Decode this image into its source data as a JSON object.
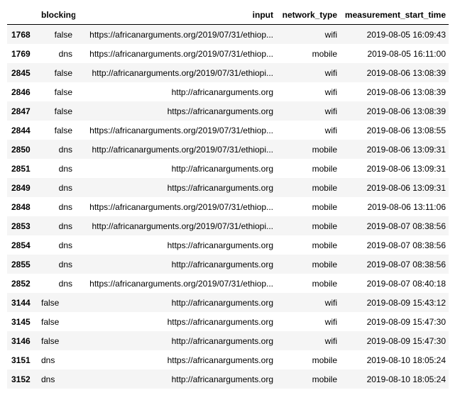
{
  "table": {
    "columns": [
      "",
      "blocking",
      "input",
      "network_type",
      "measurement_start_time"
    ],
    "rows": [
      [
        "1768",
        "false",
        "https://africanarguments.org/2019/07/31/ethiop...",
        "wifi",
        "2019-08-05 16:09:43"
      ],
      [
        "1769",
        "dns",
        "https://africanarguments.org/2019/07/31/ethiop...",
        "mobile",
        "2019-08-05 16:11:00"
      ],
      [
        "2845",
        "false",
        "http://africanarguments.org/2019/07/31/ethiopi...",
        "wifi",
        "2019-08-06 13:08:39"
      ],
      [
        "2846",
        "false",
        "http://africanarguments.org",
        "wifi",
        "2019-08-06 13:08:39"
      ],
      [
        "2847",
        "false",
        "https://africanarguments.org",
        "wifi",
        "2019-08-06 13:08:39"
      ],
      [
        "2844",
        "false",
        "https://africanarguments.org/2019/07/31/ethiop...",
        "wifi",
        "2019-08-06 13:08:55"
      ],
      [
        "2850",
        "dns",
        "http://africanarguments.org/2019/07/31/ethiopi...",
        "mobile",
        "2019-08-06 13:09:31"
      ],
      [
        "2851",
        "dns",
        "http://africanarguments.org",
        "mobile",
        "2019-08-06 13:09:31"
      ],
      [
        "2849",
        "dns",
        "https://africanarguments.org",
        "mobile",
        "2019-08-06 13:09:31"
      ],
      [
        "2848",
        "dns",
        "https://africanarguments.org/2019/07/31/ethiop...",
        "mobile",
        "2019-08-06 13:11:06"
      ],
      [
        "2853",
        "dns",
        "http://africanarguments.org/2019/07/31/ethiopi...",
        "mobile",
        "2019-08-07 08:38:56"
      ],
      [
        "2854",
        "dns",
        "https://africanarguments.org",
        "mobile",
        "2019-08-07 08:38:56"
      ],
      [
        "2855",
        "dns",
        "http://africanarguments.org",
        "mobile",
        "2019-08-07 08:38:56"
      ],
      [
        "2852",
        "dns",
        "https://africanarguments.org/2019/07/31/ethiop...",
        "mobile",
        "2019-08-07 08:40:18"
      ],
      [
        "3144",
        "false",
        "http://africanarguments.org",
        "wifi",
        "2019-08-09 15:43:12"
      ],
      [
        "3145",
        "false",
        "https://africanarguments.org",
        "wifi",
        "2019-08-09 15:47:30"
      ],
      [
        "3146",
        "false",
        "http://africanarguments.org",
        "wifi",
        "2019-08-09 15:47:30"
      ],
      [
        "3151",
        "dns",
        "https://africanarguments.org",
        "mobile",
        "2019-08-10 18:05:24"
      ],
      [
        "3152",
        "dns",
        "http://africanarguments.org",
        "mobile",
        "2019-08-10 18:05:24"
      ]
    ]
  }
}
